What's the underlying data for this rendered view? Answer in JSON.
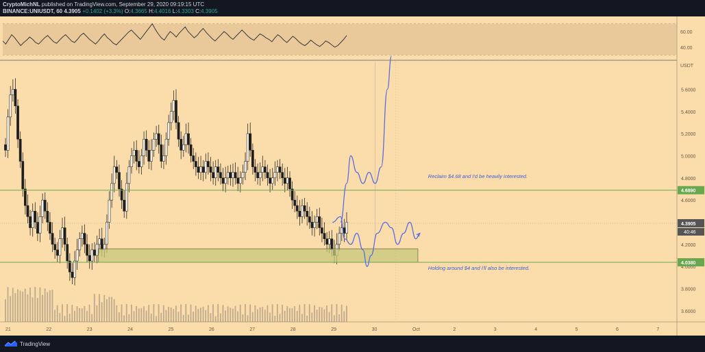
{
  "header": {
    "author": "CryptoMichNL",
    "published": "published on TradingView.com, September 29, 2020 09:19:15 UTC",
    "symbol": "BINANCE:UNIUSDT, 60",
    "last": "4.3905",
    "change": "+0.1402 (+3.3%)",
    "o_label": "O:",
    "o": "4.3665",
    "h_label": "H:",
    "h": "4.4016",
    "l_label": "L:",
    "l": "4.3303",
    "c_label": "C:",
    "c": "4.3905"
  },
  "footer": {
    "brand": "TradingView",
    "logo_icon": "tradingview-logo-icon"
  },
  "colors": {
    "background": "#fbdcab",
    "dark": "#131722",
    "up": "#4a4a4a",
    "down": "#1f1f1f",
    "resistance": "#6aa84f",
    "support_zone": "#c6c97c",
    "projection": "#5b6ee1",
    "annotation": "#3f5bd4"
  },
  "chart_data": {
    "type": "candlestick",
    "currency": "USDT",
    "price_ticks": [
      "5.6000",
      "5.4000",
      "5.2000",
      "5.0000",
      "4.8000",
      "4.6000",
      "4.2000",
      "4.0000",
      "3.8000",
      "3.6000"
    ],
    "price_range": [
      3.5,
      5.85
    ],
    "x_ticks": [
      "21",
      "22",
      "23",
      "24",
      "25",
      "26",
      "27",
      "28",
      "29",
      "30",
      "Oct",
      "2",
      "3",
      "4",
      "5",
      "6",
      "7"
    ],
    "rsi_ticks": [
      "60.00",
      "40.00"
    ],
    "rsi_range": [
      25,
      75
    ],
    "rsi_band": [
      30,
      70
    ],
    "rsi_series": [
      48,
      44,
      50,
      56,
      52,
      47,
      42,
      46,
      49,
      53,
      50,
      46,
      44,
      48,
      52,
      55,
      51,
      47,
      45,
      49,
      53,
      56,
      52,
      48,
      46,
      50,
      55,
      58,
      54,
      50,
      47,
      44,
      48,
      53,
      57,
      52,
      49,
      45,
      43,
      47,
      51,
      55,
      59,
      62,
      58,
      54,
      50,
      55,
      60,
      65,
      70,
      63,
      57,
      52,
      49,
      55,
      60,
      57,
      53,
      58,
      62,
      66,
      60,
      56,
      52,
      55,
      60,
      64,
      59,
      55,
      51,
      48,
      52,
      56,
      60,
      57,
      53,
      50,
      54,
      58,
      62,
      58,
      54,
      51,
      49,
      53,
      57,
      55,
      52,
      50,
      47,
      52,
      56,
      53,
      49,
      46,
      50,
      54,
      51,
      47,
      44,
      42,
      45,
      49,
      46,
      43,
      41,
      44,
      48,
      46,
      43,
      40,
      42,
      46,
      50,
      55
    ],
    "close_series": [
      5.05,
      5.35,
      5.55,
      5.6,
      5.45,
      5.15,
      4.95,
      4.7,
      4.55,
      4.45,
      4.35,
      4.5,
      4.4,
      4.3,
      4.45,
      4.6,
      4.5,
      4.4,
      4.3,
      4.2,
      4.15,
      4.1,
      4.25,
      4.35,
      4.2,
      4.05,
      3.95,
      3.9,
      4.05,
      4.15,
      4.25,
      4.3,
      4.2,
      4.1,
      4.05,
      4.15,
      4.1,
      4.2,
      4.25,
      4.15,
      4.2,
      4.4,
      4.6,
      4.75,
      4.9,
      4.85,
      4.7,
      4.6,
      4.5,
      4.75,
      4.9,
      5.0,
      5.05,
      4.95,
      4.9,
      5.0,
      5.15,
      5.05,
      4.95,
      5.05,
      5.15,
      5.2,
      5.1,
      4.95,
      5.0,
      5.15,
      5.3,
      5.4,
      5.5,
      5.3,
      5.15,
      5.05,
      5.1,
      5.2,
      5.1,
      5.0,
      4.95,
      4.9,
      4.85,
      4.9,
      4.85,
      4.95,
      4.9,
      4.85,
      4.8,
      4.9,
      4.85,
      4.8,
      4.75,
      4.8,
      4.85,
      4.8,
      4.85,
      4.8,
      4.75,
      4.8,
      4.85,
      4.95,
      5.2,
      5.05,
      4.9,
      4.85,
      4.8,
      4.85,
      4.9,
      4.85,
      4.8,
      4.75,
      4.8,
      4.85,
      4.9,
      4.85,
      4.8,
      4.75,
      4.8,
      4.7,
      4.6,
      4.55,
      4.5,
      4.45,
      4.55,
      4.5,
      4.45,
      4.4,
      4.35,
      4.4,
      4.45,
      4.35,
      4.3,
      4.25,
      4.2,
      4.25,
      4.15,
      4.1,
      4.2,
      4.3,
      4.35,
      4.3,
      4.4
    ],
    "resistance": 4.689,
    "resistance_label": "4.6890",
    "support": 4.038,
    "support_label": "4.0380",
    "support_zone": [
      4.038,
      4.16
    ],
    "last_price": 4.3905,
    "last_price_label": "4.3905",
    "countdown_label": "40:46",
    "projection_up": [
      [
        29.2,
        4.4
      ],
      [
        29.35,
        4.75
      ],
      [
        29.45,
        5.0
      ],
      [
        29.6,
        4.85
      ],
      [
        29.75,
        4.75
      ],
      [
        29.9,
        4.85
      ],
      [
        30.05,
        4.75
      ],
      [
        30.2,
        4.9
      ],
      [
        30.35,
        5.6
      ],
      [
        30.45,
        5.9
      ]
    ],
    "projection_down": [
      [
        29.0,
        4.4
      ],
      [
        29.2,
        4.45
      ],
      [
        29.3,
        4.25
      ],
      [
        29.45,
        4.2
      ],
      [
        29.6,
        4.3
      ],
      [
        29.75,
        4.15
      ],
      [
        29.85,
        4.0
      ],
      [
        29.95,
        4.1
      ],
      [
        30.1,
        4.3
      ],
      [
        30.3,
        4.4
      ],
      [
        30.45,
        4.35
      ],
      [
        30.6,
        4.2
      ],
      [
        30.75,
        4.3
      ],
      [
        30.9,
        4.4
      ],
      [
        31.05,
        4.25
      ],
      [
        31.15,
        4.3
      ]
    ],
    "annotations": [
      {
        "text": "Reclaim $4.68 and I'd be heavily interested.",
        "x": 31.35,
        "y": 4.8
      },
      {
        "text": "Holding around $4 and I'll also be interested.",
        "x": 31.35,
        "y": 3.97
      }
    ]
  }
}
